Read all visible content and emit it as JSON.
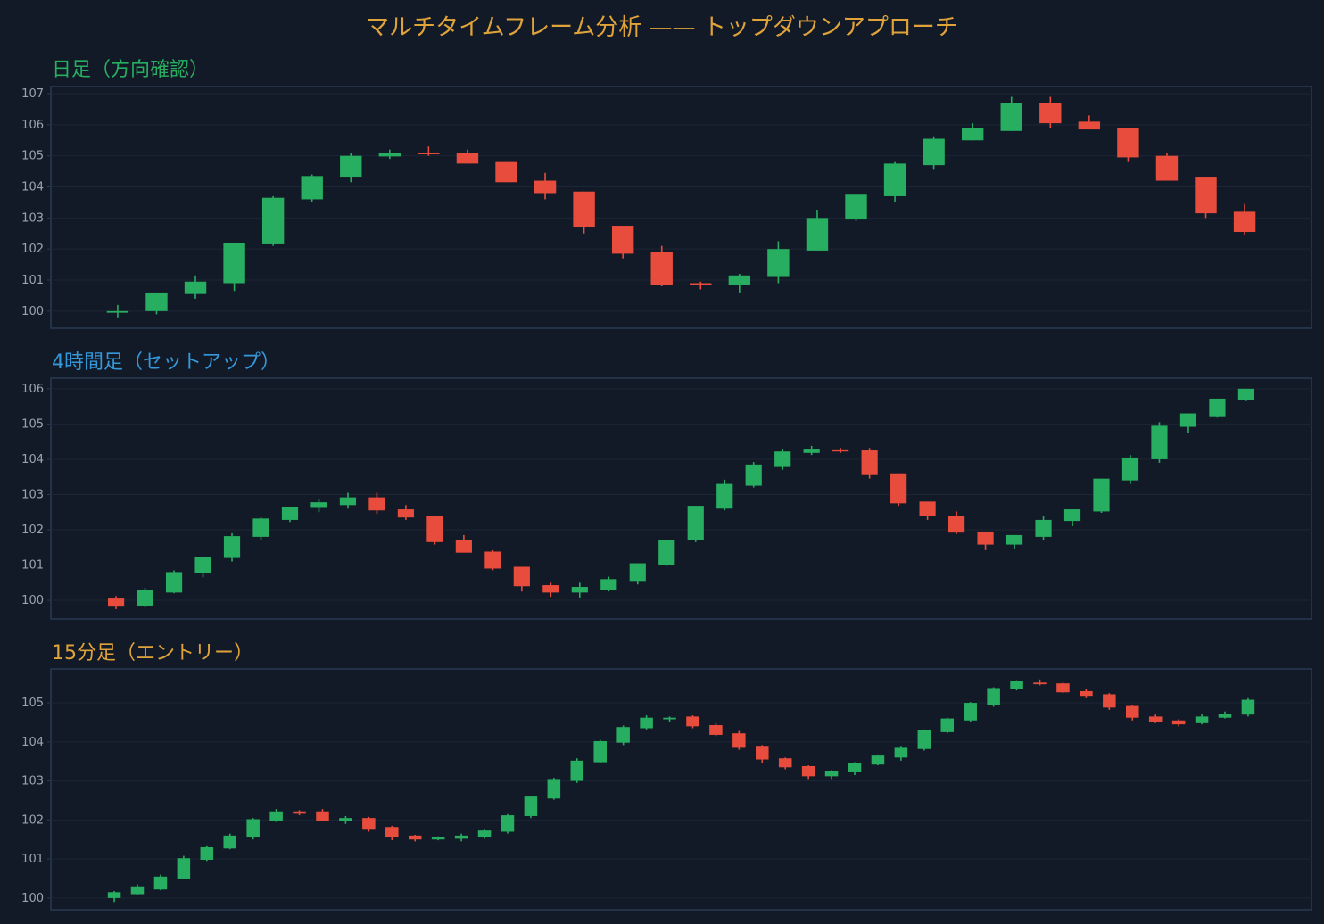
{
  "title": "マルチタイムフレーム分析 —— トップダウンアプローチ",
  "colors": {
    "background": "#131a27",
    "up": "#27ae60",
    "down": "#e74c3c",
    "title": "#e0a33a",
    "axis": "#2a3a52",
    "grid": "#1c2636",
    "tick": "#9aa3b0"
  },
  "chart_data": [
    {
      "type": "candlestick",
      "title": "日足（方向確認）",
      "title_color": "#27ae60",
      "ylim": [
        99.45,
        107.23
      ],
      "xlim": [
        -1.72,
        30.72
      ],
      "yticks": [
        100,
        101,
        102,
        103,
        104,
        105,
        106,
        107
      ],
      "grid": true,
      "ohlc": [
        [
          100.0,
          100.2,
          99.8,
          100.0
        ],
        [
          100.0,
          100.6,
          99.9,
          100.6
        ],
        [
          100.55,
          101.15,
          100.4,
          100.95
        ],
        [
          100.9,
          102.2,
          100.65,
          102.2
        ],
        [
          102.15,
          103.7,
          102.1,
          103.65
        ],
        [
          103.6,
          104.4,
          103.5,
          104.35
        ],
        [
          104.3,
          105.1,
          104.15,
          105.0
        ],
        [
          104.98,
          105.2,
          104.9,
          105.1
        ],
        [
          105.1,
          105.3,
          105.0,
          105.05
        ],
        [
          105.1,
          105.2,
          104.75,
          104.75
        ],
        [
          104.8,
          104.8,
          104.15,
          104.15
        ],
        [
          104.2,
          104.45,
          103.6,
          103.8
        ],
        [
          103.85,
          103.85,
          102.5,
          102.7
        ],
        [
          102.75,
          102.75,
          101.7,
          101.85
        ],
        [
          101.9,
          102.1,
          100.8,
          100.85
        ],
        [
          100.9,
          100.95,
          100.7,
          100.85
        ],
        [
          100.85,
          101.2,
          100.6,
          101.15
        ],
        [
          101.1,
          102.25,
          100.9,
          102.0
        ],
        [
          101.95,
          103.25,
          101.95,
          103.0
        ],
        [
          102.95,
          103.75,
          102.9,
          103.75
        ],
        [
          103.7,
          104.8,
          103.5,
          104.75
        ],
        [
          104.7,
          105.6,
          104.55,
          105.55
        ],
        [
          105.5,
          106.05,
          105.5,
          105.9
        ],
        [
          105.8,
          106.9,
          105.8,
          106.7
        ],
        [
          106.7,
          106.9,
          105.9,
          106.05
        ],
        [
          106.1,
          106.3,
          105.85,
          105.85
        ],
        [
          105.9,
          105.9,
          104.8,
          104.95
        ],
        [
          105.0,
          105.1,
          104.2,
          104.2
        ],
        [
          104.3,
          104.3,
          103.0,
          103.15
        ],
        [
          103.2,
          103.45,
          102.45,
          102.55
        ]
      ]
    },
    {
      "type": "candlestick",
      "title": "4時間足（セットアップ）",
      "title_color": "#3498db",
      "ylim": [
        99.47,
        106.3
      ],
      "xlim": [
        -2.25,
        41.25
      ],
      "yticks": [
        100,
        101,
        102,
        103,
        104,
        105,
        106
      ],
      "grid": true,
      "ohlc": [
        [
          100.05,
          100.12,
          99.75,
          99.82
        ],
        [
          99.85,
          100.35,
          99.8,
          100.28
        ],
        [
          100.22,
          100.85,
          100.2,
          100.8
        ],
        [
          100.78,
          101.22,
          100.65,
          101.22
        ],
        [
          101.2,
          101.9,
          101.1,
          101.82
        ],
        [
          101.8,
          102.35,
          101.7,
          102.32
        ],
        [
          102.28,
          102.65,
          102.22,
          102.65
        ],
        [
          102.62,
          102.88,
          102.5,
          102.78
        ],
        [
          102.7,
          103.05,
          102.6,
          102.92
        ],
        [
          102.92,
          103.05,
          102.45,
          102.55
        ],
        [
          102.58,
          102.7,
          102.28,
          102.35
        ],
        [
          102.4,
          102.4,
          101.58,
          101.65
        ],
        [
          101.7,
          101.85,
          101.35,
          101.35
        ],
        [
          101.38,
          101.42,
          100.85,
          100.9
        ],
        [
          100.95,
          100.95,
          100.25,
          100.4
        ],
        [
          100.43,
          100.5,
          100.1,
          100.22
        ],
        [
          100.22,
          100.5,
          100.08,
          100.38
        ],
        [
          100.3,
          100.67,
          100.25,
          100.6
        ],
        [
          100.55,
          101.05,
          100.45,
          101.05
        ],
        [
          101.0,
          101.72,
          100.98,
          101.72
        ],
        [
          101.7,
          102.68,
          101.65,
          102.68
        ],
        [
          102.6,
          103.42,
          102.55,
          103.3
        ],
        [
          103.25,
          103.92,
          103.2,
          103.85
        ],
        [
          103.78,
          104.3,
          103.7,
          104.22
        ],
        [
          104.18,
          104.38,
          104.12,
          104.3
        ],
        [
          104.28,
          104.32,
          104.18,
          104.22
        ],
        [
          104.25,
          104.32,
          103.45,
          103.55
        ],
        [
          103.6,
          103.6,
          102.68,
          102.75
        ],
        [
          102.8,
          102.8,
          102.28,
          102.38
        ],
        [
          102.4,
          102.52,
          101.88,
          101.92
        ],
        [
          101.95,
          101.95,
          101.42,
          101.58
        ],
        [
          101.58,
          101.85,
          101.45,
          101.85
        ],
        [
          101.8,
          102.38,
          101.7,
          102.28
        ],
        [
          102.25,
          102.58,
          102.1,
          102.58
        ],
        [
          102.52,
          103.45,
          102.48,
          103.45
        ],
        [
          103.4,
          104.12,
          103.3,
          104.05
        ],
        [
          104.0,
          105.05,
          103.9,
          104.95
        ],
        [
          104.92,
          105.3,
          104.75,
          105.3
        ],
        [
          105.22,
          105.72,
          105.18,
          105.72
        ],
        [
          105.68,
          106.0,
          105.65,
          106.0
        ]
      ]
    },
    {
      "type": "candlestick",
      "title": "15分足（エントリー）",
      "title_color": "#e0a33a",
      "ylim": [
        99.7,
        105.87
      ],
      "xlim": [
        -2.74,
        51.74
      ],
      "yticks": [
        100,
        101,
        102,
        103,
        104,
        105
      ],
      "grid": true,
      "ohlc": [
        [
          100.0,
          100.18,
          99.9,
          100.15
        ],
        [
          100.1,
          100.35,
          100.08,
          100.3
        ],
        [
          100.22,
          100.6,
          100.2,
          100.55
        ],
        [
          100.5,
          101.08,
          100.48,
          101.02
        ],
        [
          100.98,
          101.35,
          100.95,
          101.3
        ],
        [
          101.27,
          101.65,
          101.25,
          101.6
        ],
        [
          101.55,
          102.05,
          101.5,
          102.02
        ],
        [
          101.98,
          102.28,
          101.95,
          102.22
        ],
        [
          102.22,
          102.25,
          102.12,
          102.16
        ],
        [
          102.22,
          102.28,
          101.98,
          101.98
        ],
        [
          101.98,
          102.1,
          101.9,
          102.05
        ],
        [
          102.05,
          102.08,
          101.7,
          101.75
        ],
        [
          101.82,
          101.85,
          101.48,
          101.55
        ],
        [
          101.6,
          101.62,
          101.45,
          101.5
        ],
        [
          101.5,
          101.58,
          101.48,
          101.57
        ],
        [
          101.52,
          101.65,
          101.45,
          101.6
        ],
        [
          101.55,
          101.75,
          101.52,
          101.73
        ],
        [
          101.7,
          102.15,
          101.65,
          102.12
        ],
        [
          102.1,
          102.62,
          102.05,
          102.6
        ],
        [
          102.55,
          103.08,
          102.52,
          103.05
        ],
        [
          103.0,
          103.58,
          102.95,
          103.52
        ],
        [
          103.48,
          104.05,
          103.45,
          104.02
        ],
        [
          103.98,
          104.42,
          103.92,
          104.38
        ],
        [
          104.35,
          104.68,
          104.32,
          104.62
        ],
        [
          104.58,
          104.65,
          104.52,
          104.62
        ],
        [
          104.65,
          104.68,
          104.35,
          104.4
        ],
        [
          104.43,
          104.48,
          104.15,
          104.18
        ],
        [
          104.22,
          104.28,
          103.8,
          103.85
        ],
        [
          103.9,
          103.92,
          103.45,
          103.55
        ],
        [
          103.58,
          103.6,
          103.3,
          103.35
        ],
        [
          103.38,
          103.4,
          103.05,
          103.12
        ],
        [
          103.12,
          103.28,
          103.05,
          103.25
        ],
        [
          103.22,
          103.48,
          103.15,
          103.45
        ],
        [
          103.42,
          103.68,
          103.4,
          103.65
        ],
        [
          103.6,
          103.9,
          103.52,
          103.85
        ],
        [
          103.82,
          104.32,
          103.78,
          104.3
        ],
        [
          104.25,
          104.62,
          104.22,
          104.6
        ],
        [
          104.55,
          105.02,
          104.5,
          105.0
        ],
        [
          104.95,
          105.4,
          104.9,
          105.38
        ],
        [
          105.35,
          105.58,
          105.32,
          105.55
        ],
        [
          105.52,
          105.6,
          105.45,
          105.48
        ],
        [
          105.5,
          105.52,
          105.25,
          105.27
        ],
        [
          105.3,
          105.35,
          105.12,
          105.18
        ],
        [
          105.22,
          105.25,
          104.82,
          104.88
        ],
        [
          104.92,
          104.95,
          104.55,
          104.62
        ],
        [
          104.65,
          104.7,
          104.48,
          104.52
        ],
        [
          104.55,
          104.58,
          104.4,
          104.45
        ],
        [
          104.48,
          104.72,
          104.45,
          104.65
        ],
        [
          104.62,
          104.78,
          104.6,
          104.72
        ],
        [
          104.7,
          105.12,
          104.65,
          105.08
        ]
      ]
    }
  ]
}
